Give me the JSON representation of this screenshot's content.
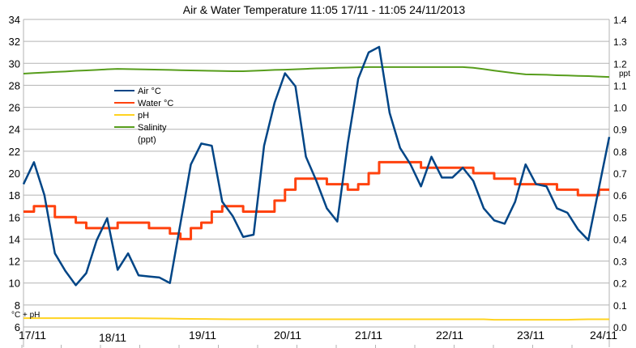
{
  "chart_data": {
    "type": "line",
    "title": "Air & Water Temperature 11:05 17/11 - 11:05 24/11/2013",
    "x_start": "2013-11-17 11:05",
    "x_end": "2013-11-24 11:05",
    "x_step_hours": 3,
    "x_tick_labels": [
      "17/11",
      "18/11",
      "19/11",
      "20/11",
      "21/11",
      "22/11",
      "23/11",
      "24/11"
    ],
    "y_left": {
      "label": "°C + pH",
      "range": [
        6,
        34
      ],
      "step": 2
    },
    "y_right": {
      "label": "ppt",
      "range": [
        0,
        1.4
      ],
      "step": 0.1
    },
    "grid": true,
    "legend_placement": "upper-left inside",
    "series": [
      {
        "name": "Air °C",
        "axis": "left",
        "color": "#004586",
        "values": [
          19,
          21,
          18,
          12.7,
          11.1,
          9.8,
          10.9,
          13.9,
          15.9,
          11.2,
          12.7,
          10.7,
          10.6,
          10.5,
          10,
          15.4,
          20.8,
          22.7,
          22.5,
          17.4,
          16.1,
          14.2,
          14.4,
          22.5,
          26.4,
          29.1,
          27.9,
          21.5,
          19.3,
          16.8,
          15.6,
          22.7,
          28.6,
          31,
          31.5,
          25.5,
          22.3,
          20.8,
          18.8,
          21.5,
          19.6,
          19.6,
          20.5,
          19.3,
          16.8,
          15.7,
          15.4,
          17.4,
          20.8,
          19,
          18.8,
          16.8,
          16.4,
          14.9,
          13.9,
          18.6,
          23.3
        ]
      },
      {
        "name": "Water °C",
        "axis": "left",
        "color": "#ff420e",
        "step": true,
        "values": [
          16.5,
          17,
          17,
          16,
          16,
          15.5,
          15,
          15,
          15,
          15.5,
          15.5,
          15.5,
          15,
          15,
          14.5,
          14,
          15,
          15.5,
          16.5,
          17,
          17,
          16.5,
          16.5,
          16.5,
          17.5,
          18.5,
          19.5,
          19.5,
          19.5,
          19,
          19,
          18.5,
          19,
          20,
          21,
          21,
          21,
          21,
          20.5,
          20.5,
          20.5,
          20.5,
          20.5,
          20,
          20,
          19.5,
          19.5,
          19,
          19,
          19,
          19,
          18.5,
          18.5,
          18,
          18,
          18.5,
          18.5
        ]
      },
      {
        "name": "pH",
        "axis": "left",
        "color": "#ffd320",
        "values": [
          6.8,
          6.8,
          6.8,
          6.8,
          6.8,
          6.8,
          6.8,
          6.8,
          6.8,
          6.8,
          6.8,
          6.79,
          6.78,
          6.77,
          6.76,
          6.75,
          6.74,
          6.73,
          6.72,
          6.71,
          6.7,
          6.7,
          6.7,
          6.7,
          6.7,
          6.7,
          6.7,
          6.7,
          6.7,
          6.7,
          6.7,
          6.7,
          6.7,
          6.7,
          6.7,
          6.7,
          6.7,
          6.7,
          6.7,
          6.7,
          6.7,
          6.7,
          6.7,
          6.7,
          6.7,
          6.65,
          6.65,
          6.65,
          6.65,
          6.65,
          6.65,
          6.65,
          6.65,
          6.68,
          6.7,
          6.7,
          6.7
        ]
      },
      {
        "name": "Salinity (ppt)",
        "axis": "right",
        "color": "#579d1c",
        "values": [
          1.153,
          1.156,
          1.158,
          1.161,
          1.163,
          1.166,
          1.168,
          1.17,
          1.173,
          1.175,
          1.174,
          1.173,
          1.172,
          1.171,
          1.17,
          1.169,
          1.168,
          1.167,
          1.166,
          1.165,
          1.164,
          1.164,
          1.166,
          1.168,
          1.17,
          1.171,
          1.173,
          1.175,
          1.177,
          1.178,
          1.18,
          1.181,
          1.182,
          1.183,
          1.183,
          1.183,
          1.183,
          1.183,
          1.183,
          1.183,
          1.183,
          1.183,
          1.183,
          1.18,
          1.174,
          1.167,
          1.161,
          1.155,
          1.15,
          1.149,
          1.148,
          1.146,
          1.145,
          1.143,
          1.142,
          1.14,
          1.138
        ]
      }
    ]
  }
}
